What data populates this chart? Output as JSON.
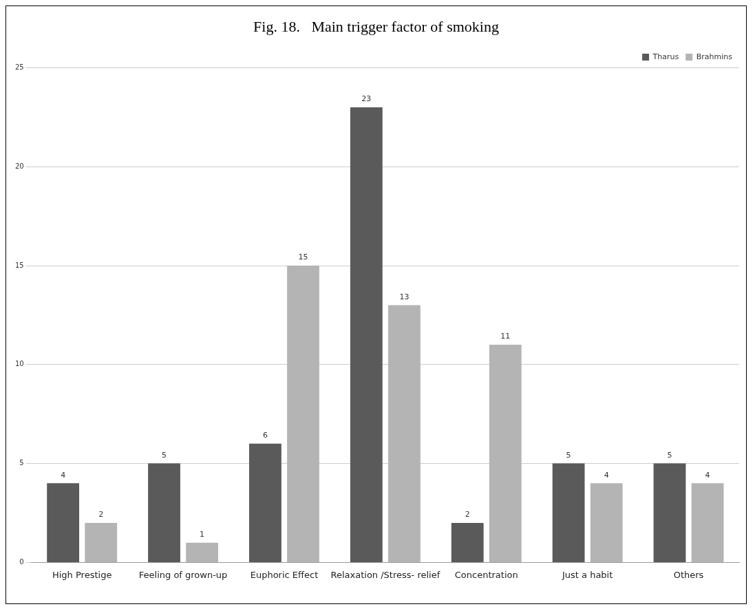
{
  "chart_data": {
    "type": "bar",
    "title": "Fig. 18.   Main trigger factor of smoking",
    "categories": [
      "High Prestige",
      "Feeling of grown-up",
      "Euphoric Effect",
      "Relaxation /Stress- relief",
      "Concentration",
      "Just a habit",
      "Others"
    ],
    "series": [
      {
        "name": "Tharus",
        "color": "#5a5a5a",
        "values": [
          4,
          5,
          6,
          23,
          2,
          5,
          5
        ]
      },
      {
        "name": "Brahmins",
        "color": "#b4b4b4",
        "values": [
          2,
          1,
          15,
          13,
          11,
          4,
          4
        ]
      }
    ],
    "ylim": [
      0,
      25
    ],
    "yticks": [
      0,
      5,
      10,
      15,
      20,
      25
    ],
    "grid": "y",
    "legend": "top right",
    "data_labels": true
  }
}
